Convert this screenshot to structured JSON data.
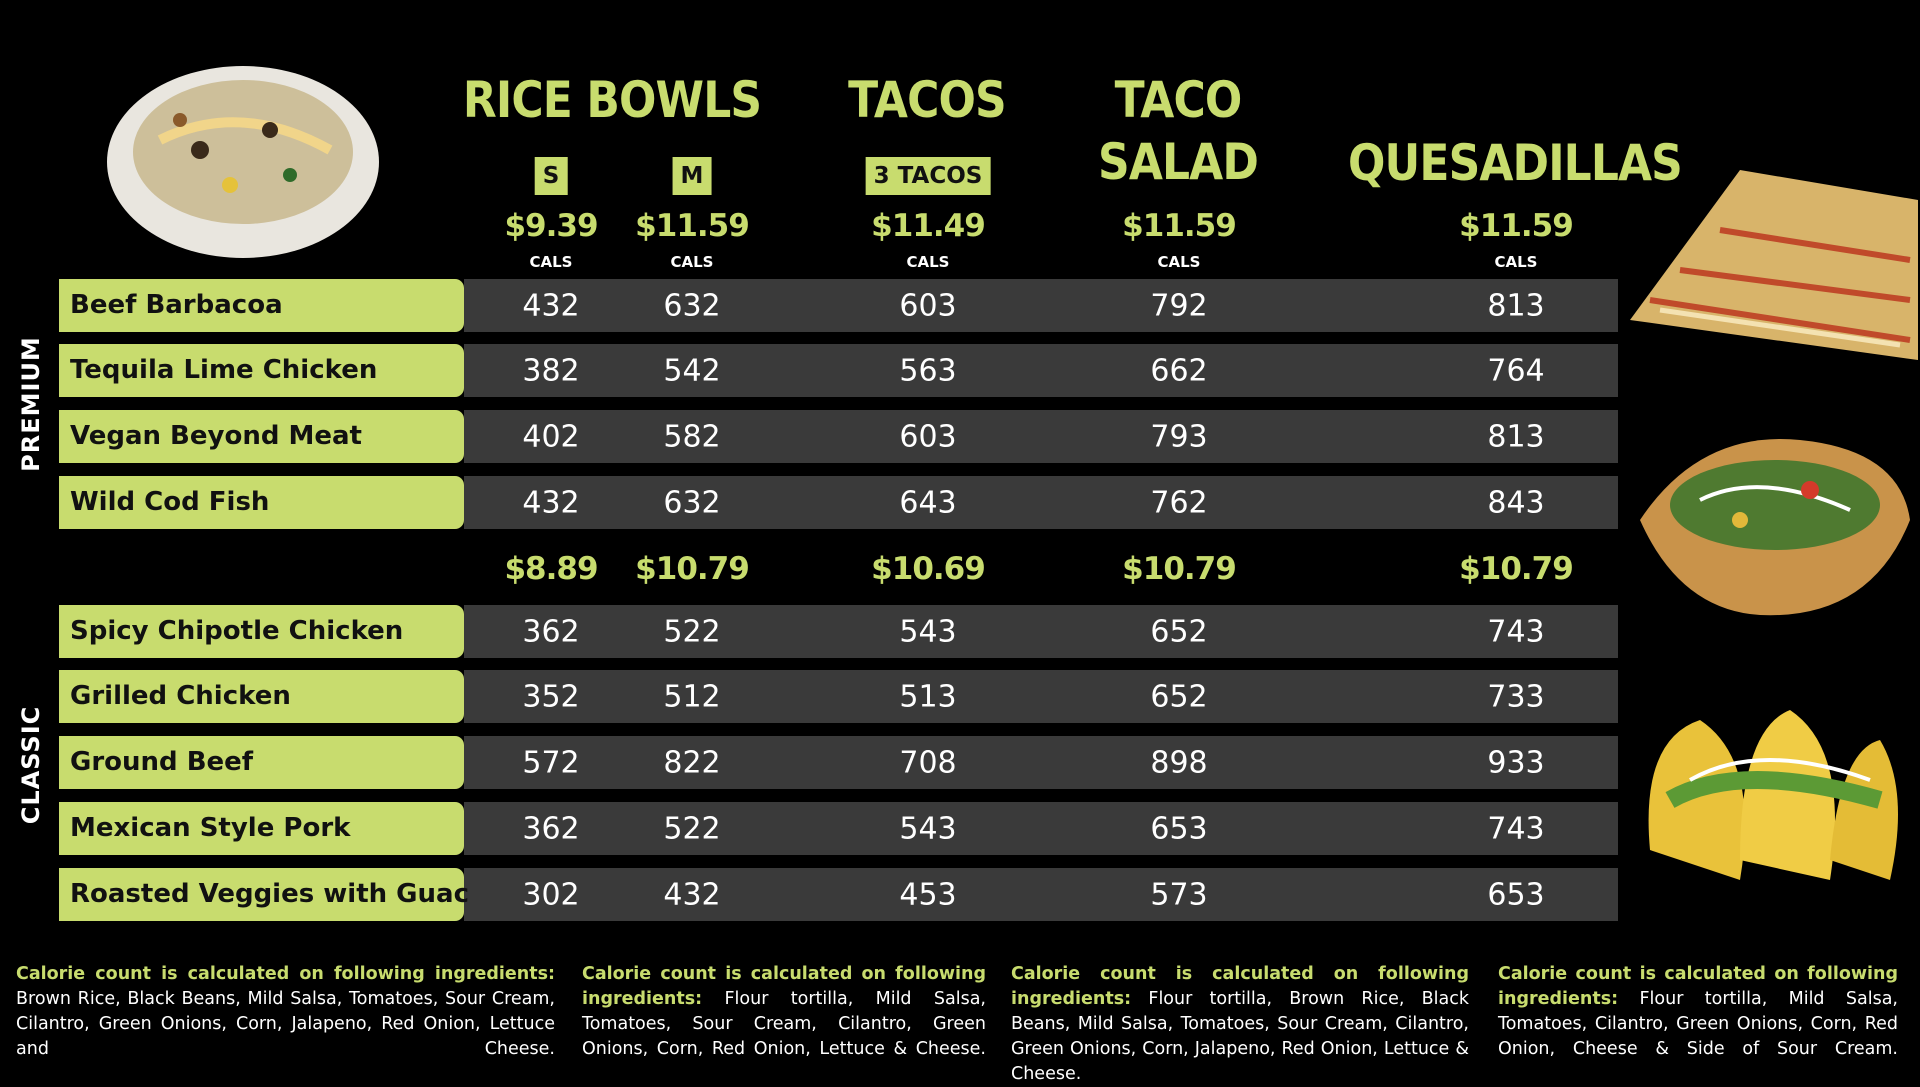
{
  "headers": [
    "RICE BOWLS",
    "TACOS",
    "TACO SALAD",
    "QUESADILLAS"
  ],
  "sizes": [
    "S",
    "M",
    "3 TACOS"
  ],
  "cal_labels": [
    "CALS",
    "CALS",
    "CALS",
    "CALS",
    "CALS"
  ],
  "sections": [
    {
      "label": "PREMIUM",
      "prices": [
        "$9.39",
        "$11.59",
        "$11.49",
        "$11.59",
        "$11.59"
      ],
      "rows": [
        {
          "name": "Beef Barbacoa",
          "values": [
            432,
            632,
            603,
            792,
            813
          ]
        },
        {
          "name": "Tequila Lime Chicken",
          "values": [
            382,
            542,
            563,
            662,
            764
          ]
        },
        {
          "name": "Vegan Beyond Meat",
          "values": [
            402,
            582,
            603,
            793,
            813
          ]
        },
        {
          "name": "Wild Cod Fish",
          "values": [
            432,
            632,
            643,
            762,
            843
          ]
        }
      ]
    },
    {
      "label": "CLASSIC",
      "prices": [
        "$8.89",
        "$10.79",
        "$10.69",
        "$10.79",
        "$10.79"
      ],
      "rows": [
        {
          "name": "Spicy Chipotle Chicken",
          "values": [
            362,
            522,
            543,
            652,
            743
          ]
        },
        {
          "name": "Grilled Chicken",
          "values": [
            352,
            512,
            513,
            652,
            733
          ]
        },
        {
          "name": "Ground Beef",
          "values": [
            572,
            822,
            708,
            898,
            933
          ]
        },
        {
          "name": "Mexican Style Pork",
          "values": [
            362,
            522,
            543,
            653,
            743
          ]
        },
        {
          "name": "Roasted Veggies with Guac",
          "values": [
            302,
            432,
            453,
            573,
            653
          ]
        }
      ]
    }
  ],
  "notes": [
    {
      "lead": "Calorie count is calculated on following ingredients:",
      "text": "Brown Rice, Black Beans, Mild Salsa, Tomatoes, Sour Cream, Cilantro, Green Onions, Corn, Jalapeno, Red Onion, Lettuce and Cheese."
    },
    {
      "lead": "Calorie count is calculated on following ingredients:",
      "text": "Flour tortilla, Mild Salsa, Tomatoes, Sour Cream, Cilantro, Green Onions, Corn, Red Onion, Lettuce & Cheese."
    },
    {
      "lead": "Calorie count is calculated on following ingredients:",
      "text": "Flour tortilla, Brown Rice, Black Beans, Mild Salsa, Tomatoes, Sour Cream, Cilantro, Green Onions, Corn, Jalapeno, Red Onion, Lettuce & Cheese."
    },
    {
      "lead": "Calorie count is calculated on following ingredients:",
      "text": "Flour tortilla, Mild Salsa, Tomatoes, Cilantro, Green Onions, Corn, Red Onion, Cheese & Side of Sour Cream."
    }
  ]
}
